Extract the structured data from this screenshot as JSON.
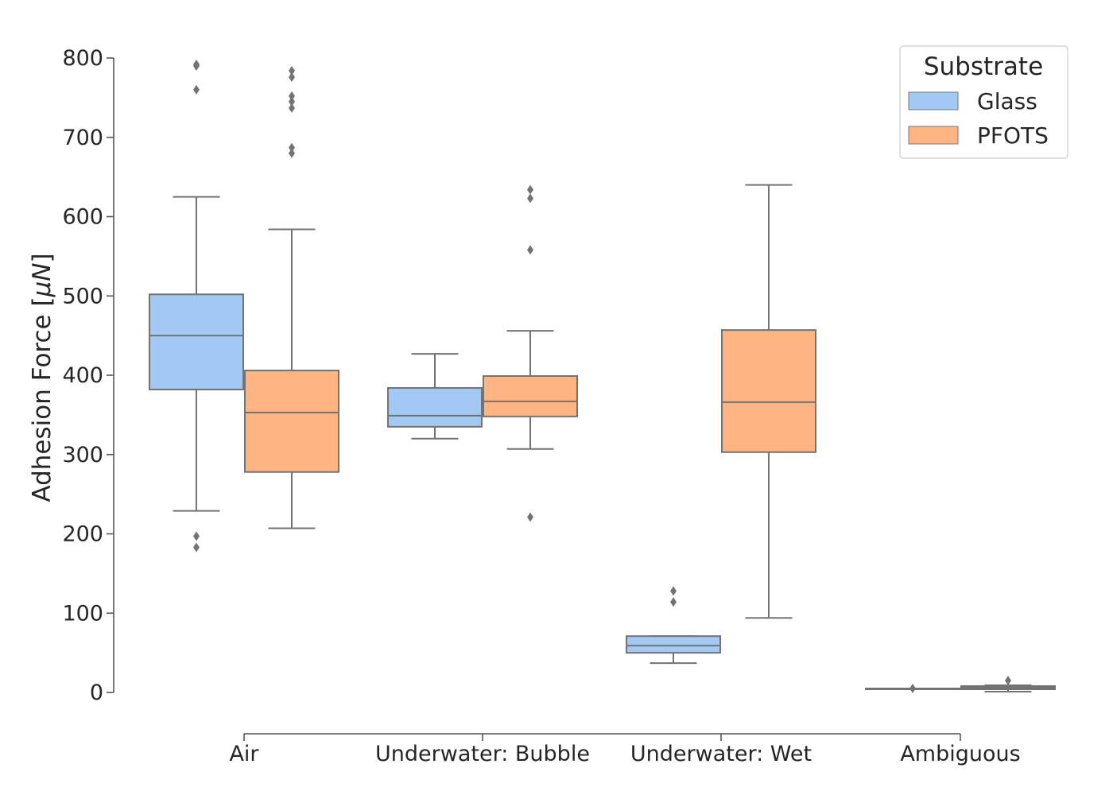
{
  "chart_data": {
    "type": "box",
    "ylabel": "Adhesion Force [",
    "ylabel_unit": "μN",
    "ylabel_close": "]",
    "ylim": [
      -45,
      850
    ],
    "yticks": [
      0,
      100,
      200,
      300,
      400,
      500,
      600,
      700,
      800
    ],
    "categories": [
      "Air",
      "Underwater: Bubble",
      "Underwater: Wet",
      "Ambiguous"
    ],
    "legend": {
      "title": "Substrate",
      "position": "top-right"
    },
    "grid": false,
    "series": [
      {
        "name": "Glass",
        "color": "#a1c9f4",
        "boxes": [
          {
            "category": "Air",
            "whisker_low": 229,
            "q1": 382,
            "median": 450,
            "q3": 502,
            "whisker_high": 625,
            "outliers": [
              183,
              197,
              760,
              790,
              792
            ]
          },
          {
            "category": "Underwater: Bubble",
            "whisker_low": 320,
            "q1": 335,
            "median": 349,
            "q3": 384,
            "whisker_high": 427,
            "outliers": []
          },
          {
            "category": "Underwater: Wet",
            "whisker_low": 37,
            "q1": 50,
            "median": 59,
            "q3": 71,
            "whisker_high": 71,
            "outliers": [
              114,
              128
            ]
          },
          {
            "category": "Ambiguous",
            "whisker_low": 5,
            "q1": 5,
            "median": 5,
            "q3": 5,
            "whisker_high": 5,
            "outliers": [
              5
            ]
          }
        ]
      },
      {
        "name": "PFOTS",
        "color": "#ffb482",
        "boxes": [
          {
            "category": "Air",
            "whisker_low": 207,
            "q1": 278,
            "median": 353,
            "q3": 406,
            "whisker_high": 584,
            "outliers": [
              680,
              687,
              737,
              745,
              752,
              776,
              784
            ]
          },
          {
            "category": "Underwater: Bubble",
            "whisker_low": 307,
            "q1": 348,
            "median": 367,
            "q3": 399,
            "whisker_high": 456,
            "outliers": [
              221,
              558,
              623,
              634
            ]
          },
          {
            "category": "Underwater: Wet",
            "whisker_low": 94,
            "q1": 303,
            "median": 366,
            "q3": 457,
            "whisker_high": 640,
            "outliers": []
          },
          {
            "category": "Ambiguous",
            "whisker_low": 1,
            "q1": 4,
            "median": 6,
            "q3": 8,
            "whisker_high": 9,
            "outliers": [
              15
            ]
          }
        ]
      }
    ]
  }
}
